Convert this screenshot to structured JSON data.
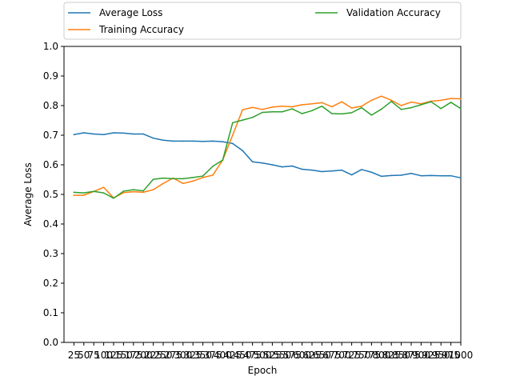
{
  "chart_data": {
    "type": "line",
    "xlabel": "Epoch",
    "ylabel": "Average Loss",
    "ylim": [
      0.0,
      1.0
    ],
    "xlim": [
      0,
      1000
    ],
    "yticks": [
      "0.0",
      "0.1",
      "0.2",
      "0.3",
      "0.4",
      "0.5",
      "0.6",
      "0.7",
      "0.8",
      "0.9",
      "1.0"
    ],
    "xticks": [
      25,
      50,
      75,
      100,
      125,
      150,
      175,
      200,
      225,
      250,
      275,
      300,
      325,
      350,
      375,
      400,
      425,
      450,
      475,
      500,
      525,
      550,
      575,
      600,
      625,
      650,
      675,
      700,
      725,
      750,
      775,
      800,
      825,
      850,
      875,
      900,
      925,
      950,
      975,
      1000
    ],
    "x": [
      25,
      50,
      75,
      100,
      125,
      150,
      175,
      200,
      225,
      250,
      275,
      300,
      325,
      350,
      375,
      400,
      425,
      450,
      475,
      500,
      525,
      550,
      575,
      600,
      625,
      650,
      675,
      700,
      725,
      750,
      775,
      800,
      825,
      850,
      875,
      900,
      925,
      950,
      975,
      1000
    ],
    "legend_position": "top, above plot, two columns",
    "grid": false,
    "series": [
      {
        "name": "Average Loss",
        "color": "#1f77b4",
        "values": [
          0.702,
          0.708,
          0.704,
          0.702,
          0.708,
          0.707,
          0.704,
          0.704,
          0.69,
          0.683,
          0.68,
          0.68,
          0.68,
          0.679,
          0.68,
          0.678,
          0.672,
          0.648,
          0.61,
          0.606,
          0.6,
          0.593,
          0.596,
          0.585,
          0.582,
          0.577,
          0.579,
          0.582,
          0.566,
          0.584,
          0.575,
          0.561,
          0.564,
          0.565,
          0.571,
          0.563,
          0.564,
          0.563,
          0.563,
          0.556
        ]
      },
      {
        "name": "Training Accuracy",
        "color": "#ff7f0e",
        "values": [
          0.497,
          0.497,
          0.51,
          0.524,
          0.488,
          0.506,
          0.509,
          0.507,
          0.516,
          0.537,
          0.555,
          0.537,
          0.545,
          0.557,
          0.565,
          0.616,
          0.7,
          0.786,
          0.794,
          0.787,
          0.795,
          0.798,
          0.796,
          0.803,
          0.806,
          0.81,
          0.796,
          0.813,
          0.792,
          0.798,
          0.818,
          0.832,
          0.818,
          0.8,
          0.812,
          0.806,
          0.815,
          0.818,
          0.824,
          0.823
        ]
      },
      {
        "name": "Validation Accuracy",
        "color": "#2ca02c",
        "values": [
          0.507,
          0.505,
          0.51,
          0.505,
          0.487,
          0.511,
          0.516,
          0.512,
          0.551,
          0.555,
          0.553,
          0.553,
          0.557,
          0.562,
          0.595,
          0.616,
          0.742,
          0.751,
          0.76,
          0.777,
          0.779,
          0.779,
          0.789,
          0.773,
          0.783,
          0.798,
          0.773,
          0.772,
          0.776,
          0.793,
          0.768,
          0.788,
          0.814,
          0.787,
          0.793,
          0.803,
          0.813,
          0.79,
          0.811,
          0.79
        ]
      }
    ]
  }
}
